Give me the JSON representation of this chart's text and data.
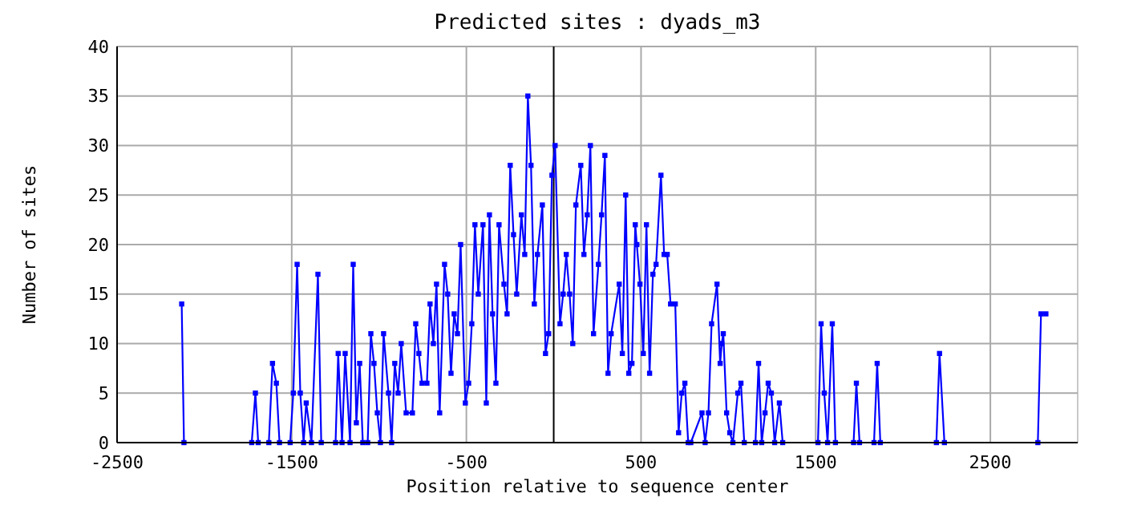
{
  "chart_data": {
    "type": "line",
    "title": "Predicted sites : dyads_m3",
    "xlabel": "Position relative to sequence center",
    "ylabel": "Number of sites",
    "xlim": [
      -2500,
      3000
    ],
    "xticks": [
      -2500,
      -1500,
      -500,
      500,
      1500,
      2500
    ],
    "ylim": [
      0,
      40
    ],
    "yticks": [
      0,
      5,
      10,
      15,
      20,
      25,
      30,
      35,
      40
    ],
    "grid": true,
    "marker": "square",
    "line_style": "solid",
    "ref_lines": [
      {
        "axis": "x",
        "value": 0,
        "color": "#000000"
      }
    ],
    "series": [
      {
        "color": "#0000ff",
        "x": [
          -2130,
          -2117,
          -1729,
          -1708,
          -1692,
          -1631,
          -1610,
          -1588,
          -1570,
          -1509,
          -1491,
          -1469,
          -1451,
          -1432,
          -1417,
          -1387,
          -1350,
          -1331,
          -1249,
          -1234,
          -1212,
          -1194,
          -1166,
          -1148,
          -1130,
          -1111,
          -1093,
          -1065,
          -1047,
          -1029,
          -1010,
          -992,
          -974,
          -946,
          -928,
          -910,
          -891,
          -873,
          -845,
          -809,
          -790,
          -772,
          -754,
          -726,
          -708,
          -689,
          -671,
          -653,
          -625,
          -607,
          -588,
          -570,
          -551,
          -533,
          -506,
          -487,
          -469,
          -451,
          -432,
          -405,
          -386,
          -368,
          -350,
          -331,
          -313,
          -285,
          -267,
          -249,
          -230,
          -212,
          -185,
          -166,
          -148,
          -130,
          -111,
          -93,
          -65,
          -47,
          -29,
          -10,
          8,
          36,
          54,
          72,
          91,
          109,
          127,
          155,
          173,
          192,
          210,
          228,
          256,
          274,
          293,
          311,
          329,
          375,
          393,
          412,
          430,
          448,
          467,
          476,
          494,
          513,
          531,
          549,
          568,
          586,
          614,
          632,
          650,
          669,
          696,
          715,
          733,
          751,
          770,
          785,
          849,
          867,
          886,
          904,
          935,
          953,
          962,
          971,
          990,
          1008,
          1026,
          1054,
          1072,
          1091,
          1155,
          1173,
          1191,
          1210,
          1228,
          1246,
          1265,
          1292,
          1311,
          1513,
          1531,
          1549,
          1568,
          1595,
          1613,
          1717,
          1733,
          1751,
          1834,
          1852,
          1870,
          2191,
          2209,
          2237,
          2772,
          2790,
          2818
        ],
        "values": [
          14,
          0,
          0,
          5,
          0,
          0,
          8,
          6,
          0,
          0,
          5,
          18,
          5,
          0,
          4,
          0,
          17,
          0,
          0,
          9,
          0,
          9,
          0,
          18,
          2,
          8,
          0,
          0,
          11,
          8,
          3,
          0,
          11,
          5,
          0,
          8,
          5,
          10,
          3,
          3,
          12,
          9,
          6,
          6,
          14,
          10,
          16,
          3,
          18,
          15,
          7,
          13,
          11,
          20,
          4,
          6,
          12,
          22,
          15,
          22,
          4,
          23,
          13,
          6,
          22,
          16,
          13,
          28,
          21,
          15,
          23,
          19,
          35,
          28,
          14,
          19,
          24,
          9,
          11,
          27,
          30,
          12,
          15,
          19,
          15,
          10,
          24,
          28,
          19,
          23,
          30,
          11,
          18,
          23,
          29,
          7,
          11,
          16,
          9,
          25,
          7,
          8,
          22,
          20,
          16,
          9,
          22,
          7,
          17,
          18,
          27,
          19,
          19,
          14,
          14,
          1,
          5,
          6,
          0,
          0,
          3,
          0,
          3,
          12,
          16,
          8,
          10,
          11,
          3,
          1,
          0,
          5,
          6,
          0,
          0,
          8,
          0,
          3,
          6,
          5,
          0,
          4,
          0,
          0,
          12,
          5,
          0,
          12,
          0,
          0,
          6,
          0,
          0,
          8,
          0,
          0,
          9,
          0,
          0,
          13,
          13
        ]
      }
    ]
  }
}
